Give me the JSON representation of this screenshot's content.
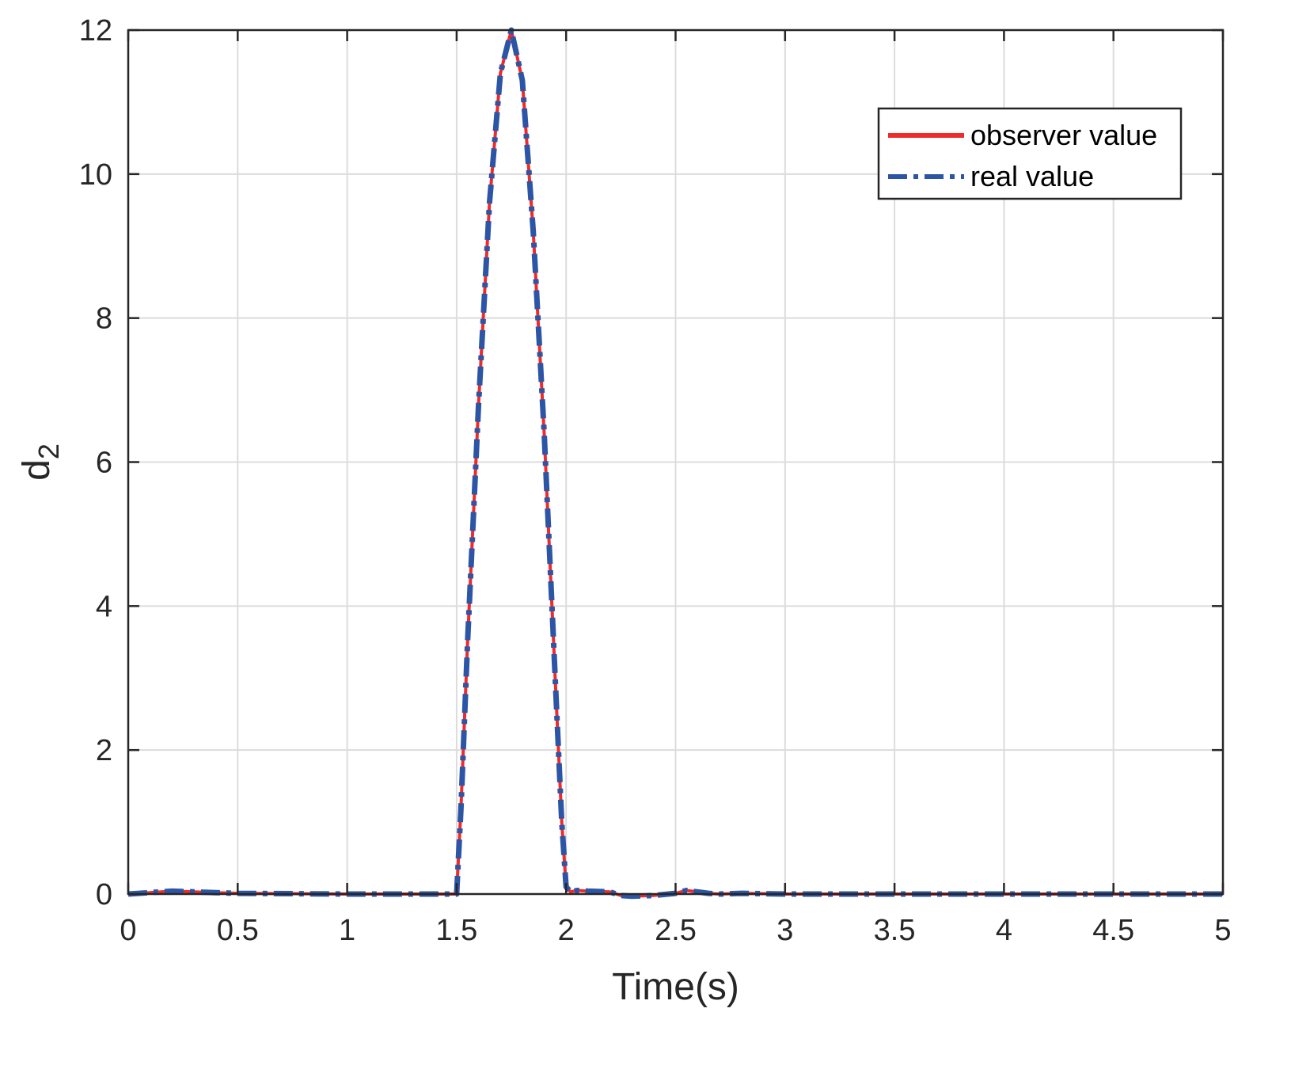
{
  "chart_data": {
    "type": "line",
    "xlabel": "Time(s)",
    "ylabel_main": "d",
    "ylabel_sub": "2",
    "xlim": [
      0,
      5
    ],
    "ylim": [
      0,
      12
    ],
    "xticks": [
      0,
      0.5,
      1,
      1.5,
      2,
      2.5,
      3,
      3.5,
      4,
      4.5,
      5
    ],
    "xtick_labels": [
      "0",
      "0.5",
      "1",
      "1.5",
      "2",
      "2.5",
      "3",
      "3.5",
      "4",
      "4.5",
      "5"
    ],
    "yticks": [
      0,
      2,
      4,
      6,
      8,
      10,
      12
    ],
    "ytick_labels": [
      "0",
      "2",
      "4",
      "6",
      "8",
      "10",
      "12"
    ],
    "grid": true,
    "legend_position": "top-right",
    "series": [
      {
        "name": "observer value",
        "color": "#ee2a2a",
        "style": "solid",
        "x": [
          0,
          0.1,
          0.2,
          0.3,
          0.4,
          0.5,
          1.0,
          1.45,
          1.5,
          1.52,
          1.55,
          1.6,
          1.65,
          1.7,
          1.75,
          1.8,
          1.85,
          1.9,
          1.95,
          1.98,
          2.0,
          2.02,
          2.05,
          2.1,
          2.2,
          2.25,
          2.3,
          2.4,
          2.5,
          2.55,
          2.6,
          2.65,
          2.7,
          2.8,
          3.0,
          3.5,
          4.0,
          4.5,
          5.0
        ],
        "y": [
          0,
          0.02,
          0.04,
          0.03,
          0.02,
          0.01,
          0,
          0,
          0,
          1.2,
          3.5,
          6.8,
          9.6,
          11.4,
          12.0,
          11.3,
          9.2,
          6.4,
          3.0,
          1.0,
          0.1,
          0.03,
          0.05,
          0.04,
          0.03,
          -0.02,
          -0.03,
          -0.02,
          0.01,
          0.05,
          0.03,
          0.01,
          0,
          0.01,
          0,
          0,
          0,
          0,
          0
        ]
      },
      {
        "name": "real value",
        "color": "#2d55a6",
        "style": "dashdot",
        "x": [
          0,
          0.1,
          0.2,
          0.3,
          0.4,
          0.5,
          1.0,
          1.45,
          1.5,
          1.52,
          1.55,
          1.6,
          1.65,
          1.7,
          1.75,
          1.8,
          1.85,
          1.9,
          1.95,
          1.98,
          2.0,
          2.02,
          2.05,
          2.1,
          2.2,
          2.25,
          2.3,
          2.4,
          2.5,
          2.55,
          2.6,
          2.65,
          2.7,
          2.8,
          3.0,
          3.5,
          4.0,
          4.5,
          5.0
        ],
        "y": [
          0,
          0.02,
          0.04,
          0.03,
          0.02,
          0.01,
          0,
          0,
          0,
          1.2,
          3.5,
          6.8,
          9.6,
          11.4,
          12.0,
          11.3,
          9.2,
          6.4,
          3.0,
          1.0,
          0.1,
          0.03,
          0.05,
          0.04,
          0.03,
          -0.02,
          -0.03,
          -0.02,
          0.01,
          0.05,
          0.03,
          0.01,
          0,
          0.01,
          0,
          0,
          0,
          0,
          0
        ]
      }
    ]
  }
}
